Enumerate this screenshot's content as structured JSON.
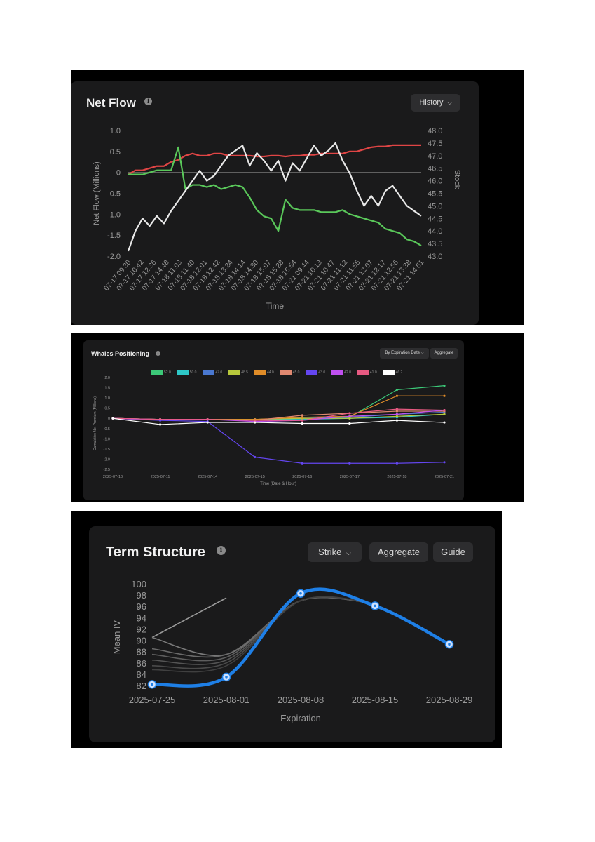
{
  "net_flow": {
    "title": "Net Flow",
    "history_button": "History",
    "chart_data": {
      "type": "line",
      "title": "Net Flow",
      "xlabel": "Time",
      "ylabel": "Net Flow (Millions)",
      "y2label": "Stock",
      "ylim": [
        -2.0,
        1.0
      ],
      "y2lim": [
        43.0,
        48.0
      ],
      "y_ticks": [
        "1.0",
        "0.5",
        "0",
        "-0.5",
        "-1.0",
        "-1.5",
        "-2.0"
      ],
      "y2_ticks": [
        "48.0",
        "47.5",
        "47.0",
        "46.5",
        "46.0",
        "45.5",
        "45.0",
        "44.5",
        "44.0",
        "43.5",
        "43.0"
      ],
      "x_ticks": [
        "07-17 09:30",
        "07-17 10:42",
        "07-17 12:36",
        "07-17 14:48",
        "07-18 11:03",
        "07-18 11:40",
        "07-18 12:01",
        "07-18 12:42",
        "07-18 13:24",
        "07-18 14:14",
        "07-18 14:30",
        "07-18 15:07",
        "07-18 15:28",
        "07-18 15:54",
        "07-21 09:44",
        "07-21 10:13",
        "07-21 10:47",
        "07-21 11:12",
        "07-21 11:55",
        "07-21 12:07",
        "07-21 12:17",
        "07-21 12:56",
        "07-21 13:38",
        "07-21 14:51"
      ],
      "series": [
        {
          "color": "#e04545",
          "axis": "left",
          "values": [
            -0.05,
            0.05,
            0.05,
            0.1,
            0.15,
            0.15,
            0.25,
            0.3,
            0.4,
            0.45,
            0.4,
            0.4,
            0.45,
            0.45,
            0.4,
            0.4,
            0.4,
            0.4,
            0.38,
            0.38,
            0.4,
            0.4,
            0.38,
            0.4,
            0.4,
            0.42,
            0.42,
            0.45,
            0.45,
            0.45,
            0.45,
            0.5,
            0.5,
            0.55,
            0.6,
            0.62,
            0.62,
            0.65,
            0.65,
            0.65,
            0.65,
            0.65
          ]
        },
        {
          "color": "#5ac85a",
          "axis": "left",
          "values": [
            -0.05,
            -0.05,
            -0.05,
            0.0,
            0.05,
            0.05,
            0.05,
            0.6,
            -0.4,
            -0.3,
            -0.3,
            -0.35,
            -0.3,
            -0.4,
            -0.35,
            -0.3,
            -0.35,
            -0.6,
            -0.9,
            -1.05,
            -1.1,
            -1.4,
            -0.65,
            -0.85,
            -0.9,
            -0.9,
            -0.9,
            -0.95,
            -0.95,
            -0.95,
            -0.9,
            -1.0,
            -1.05,
            -1.1,
            -1.15,
            -1.2,
            -1.35,
            -1.4,
            -1.45,
            -1.6,
            -1.65,
            -1.75
          ]
        },
        {
          "color": "#e8e8e8",
          "axis": "right",
          "values": [
            43.2,
            44.0,
            44.5,
            44.2,
            44.6,
            44.3,
            44.8,
            45.2,
            45.6,
            46.0,
            46.4,
            46.0,
            46.2,
            46.6,
            47.0,
            47.2,
            47.4,
            46.6,
            47.1,
            46.8,
            46.4,
            46.8,
            46.0,
            46.7,
            46.4,
            46.9,
            47.4,
            47.0,
            47.2,
            47.5,
            46.8,
            46.3,
            45.6,
            45.0,
            45.4,
            45.0,
            45.6,
            45.8,
            45.4,
            45.0,
            44.8,
            44.6
          ]
        }
      ]
    }
  },
  "whales": {
    "title": "Whales Positioning",
    "expiration_button": "By Expiration Date",
    "aggregate_button": "Aggregate",
    "chart_data": {
      "type": "line",
      "title": "Whales Positioning",
      "xlabel": "Time (Date & Hour)",
      "ylabel": "Cumulative Net Premium (Millions)",
      "ylim": [
        -2.5,
        2.0
      ],
      "y_ticks": [
        "2.0",
        "1.5",
        "1.0",
        "0.5",
        "0",
        "-0.5",
        "-1.0",
        "-1.5",
        "-2.0",
        "-2.5"
      ],
      "categories": [
        "2025-07-10",
        "2025-07-11",
        "2025-07-14",
        "2025-07-15",
        "2025-07-16",
        "2025-07-17",
        "2025-07-18",
        "2025-07-21"
      ],
      "series": [
        {
          "name": "52.0",
          "color": "#3cc878",
          "values": [
            0,
            -0.05,
            -0.05,
            -0.05,
            0.0,
            0.05,
            1.4,
            1.6
          ]
        },
        {
          "name": "50.0",
          "color": "#2ec8c8",
          "values": [
            0,
            -0.05,
            -0.05,
            -0.05,
            -0.05,
            0.0,
            0.05,
            0.2
          ]
        },
        {
          "name": "47.0",
          "color": "#4a78d0",
          "values": [
            0,
            -0.05,
            -0.05,
            -0.05,
            0.0,
            0.05,
            0.2,
            0.3
          ]
        },
        {
          "name": "48.5",
          "color": "#b8c83c",
          "values": [
            0,
            -0.05,
            -0.05,
            -0.05,
            0.0,
            0.0,
            0.1,
            0.2
          ]
        },
        {
          "name": "44.0",
          "color": "#e08c28",
          "values": [
            0,
            -0.05,
            -0.05,
            -0.05,
            0.05,
            0.1,
            1.1,
            1.1
          ]
        },
        {
          "name": "45.0",
          "color": "#e08870",
          "values": [
            0,
            -0.05,
            -0.05,
            -0.1,
            0.15,
            0.25,
            0.35,
            0.35
          ]
        },
        {
          "name": "43.0",
          "color": "#6446f0",
          "values": [
            0,
            -0.1,
            -0.15,
            -1.9,
            -2.2,
            -2.2,
            -2.2,
            -2.15
          ]
        },
        {
          "name": "42.0",
          "color": "#c050f0",
          "values": [
            0,
            -0.05,
            -0.05,
            -0.15,
            -0.1,
            0.1,
            0.2,
            0.4
          ]
        },
        {
          "name": "41.0",
          "color": "#e85a82",
          "values": [
            0,
            -0.05,
            -0.05,
            -0.1,
            -0.1,
            0.25,
            0.45,
            0.4
          ]
        },
        {
          "name": "46.2",
          "color": "#ffffff",
          "values": [
            0,
            -0.3,
            -0.2,
            -0.2,
            -0.25,
            -0.25,
            -0.1,
            -0.2
          ]
        }
      ]
    }
  },
  "term": {
    "title": "Term Structure",
    "strike_button": "Strike",
    "aggregate_button": "Aggregate",
    "guide_button": "Guide",
    "chart_data": {
      "type": "line",
      "title": "Term Structure",
      "xlabel": "Expiration",
      "ylabel": "Mean IV",
      "ylim": [
        82,
        100
      ],
      "y_ticks": [
        "100",
        "98",
        "96",
        "94",
        "92",
        "90",
        "88",
        "86",
        "84",
        "82"
      ],
      "categories": [
        "2025-07-25",
        "2025-08-01",
        "2025-08-08",
        "2025-08-15",
        "2025-08-29"
      ],
      "series": [
        {
          "color": "#1e7fe6",
          "highlighted": true,
          "values": [
            82.2,
            83.5,
            98.3,
            96.1,
            89.3
          ]
        }
      ],
      "background_lines": [
        {
          "color": "#9a9a9a",
          "points": [
            [
              0,
              90.5
            ],
            [
              1,
              97.5
            ]
          ]
        },
        {
          "color": "#7a7a7a",
          "points": [
            [
              0,
              90.5
            ],
            [
              1,
              87.5
            ],
            [
              2,
              97.0
            ],
            [
              3,
              96.5
            ]
          ]
        },
        {
          "color": "#6a6a6a",
          "points": [
            [
              0,
              88.5
            ],
            [
              1,
              87.5
            ],
            [
              2,
              97.0
            ],
            [
              3,
              96.5
            ]
          ]
        },
        {
          "color": "#5e5e5e",
          "points": [
            [
              0,
              87.5
            ],
            [
              1,
              87.0
            ],
            [
              2,
              97.0
            ],
            [
              3,
              96.5
            ]
          ]
        },
        {
          "color": "#545454",
          "points": [
            [
              0,
              86.5
            ],
            [
              1,
              86.5
            ],
            [
              2,
              97.0
            ],
            [
              3,
              96.5
            ]
          ]
        },
        {
          "color": "#4a4a4a",
          "points": [
            [
              0,
              85.5
            ],
            [
              1,
              86.0
            ],
            [
              2,
              97.0
            ],
            [
              3,
              96.5
            ]
          ]
        },
        {
          "color": "#404040",
          "points": [
            [
              0,
              84.8
            ],
            [
              1,
              85.5
            ],
            [
              2,
              97.0
            ],
            [
              3,
              96.5
            ]
          ]
        }
      ]
    }
  }
}
